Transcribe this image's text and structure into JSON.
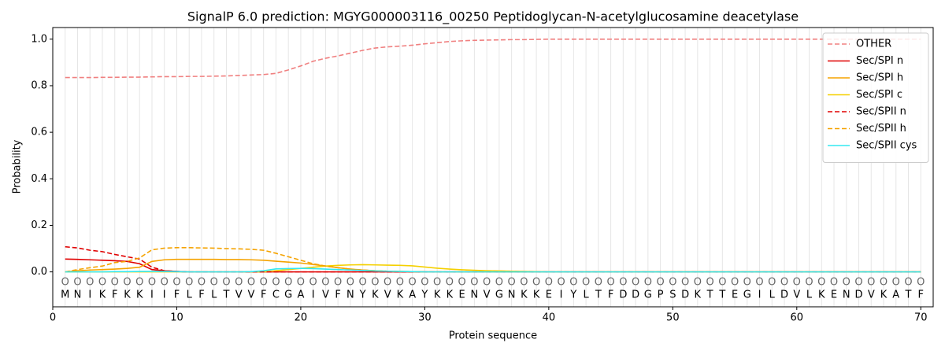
{
  "chart_data": {
    "type": "line",
    "title": "SignalP 6.0 prediction: MGYG000003116_00250 Peptidoglycan-N-acetylglucosamine deacetylase",
    "xlabel": "Protein sequence",
    "ylabel": "Probability",
    "x": [
      1,
      2,
      3,
      4,
      5,
      6,
      7,
      8,
      9,
      10,
      11,
      12,
      13,
      14,
      15,
      16,
      17,
      18,
      19,
      20,
      21,
      22,
      23,
      24,
      25,
      26,
      27,
      28,
      29,
      30,
      31,
      32,
      33,
      34,
      35,
      36,
      37,
      38,
      39,
      40,
      41,
      42,
      43,
      44,
      45,
      46,
      47,
      48,
      49,
      50,
      51,
      52,
      53,
      54,
      55,
      56,
      57,
      58,
      59,
      60,
      61,
      62,
      63,
      64,
      65,
      66,
      67,
      68,
      69,
      70
    ],
    "sequence": [
      "M",
      "N",
      "I",
      "K",
      "F",
      "K",
      "K",
      "I",
      "I",
      "F",
      "L",
      "F",
      "L",
      "T",
      "V",
      "V",
      "F",
      "C",
      "G",
      "A",
      "I",
      "V",
      "F",
      "N",
      "Y",
      "K",
      "V",
      "K",
      "A",
      "Y",
      "K",
      "K",
      "E",
      "N",
      "V",
      "G",
      "N",
      "K",
      "K",
      "E",
      "I",
      "Y",
      "L",
      "T",
      "F",
      "D",
      "D",
      "G",
      "P",
      "S",
      "D",
      "K",
      "T",
      "T",
      "E",
      "G",
      "I",
      "L",
      "D",
      "V",
      "L",
      "K",
      "E",
      "N",
      "D",
      "V",
      "K",
      "A",
      "T",
      "F"
    ],
    "predicted": [
      "O",
      "O",
      "O",
      "O",
      "O",
      "O",
      "O",
      "O",
      "O",
      "O",
      "O",
      "O",
      "O",
      "O",
      "O",
      "O",
      "O",
      "O",
      "O",
      "O",
      "O",
      "O",
      "O",
      "O",
      "O",
      "O",
      "O",
      "O",
      "O",
      "O",
      "O",
      "O",
      "O",
      "O",
      "O",
      "O",
      "O",
      "O",
      "O",
      "O",
      "O",
      "O",
      "O",
      "O",
      "O",
      "O",
      "O",
      "O",
      "O",
      "O",
      "O",
      "O",
      "O",
      "O",
      "O",
      "O",
      "O",
      "O",
      "O",
      "O",
      "O",
      "O",
      "O",
      "O",
      "O",
      "O",
      "O",
      "O",
      "O",
      "O"
    ],
    "xlim": [
      0,
      71
    ],
    "ylim": [
      -0.15,
      1.05
    ],
    "xticks": [
      0,
      10,
      20,
      30,
      40,
      50,
      60,
      70
    ],
    "yticks": [
      {
        "value": 0,
        "label": "0.0"
      },
      {
        "value": 0.2,
        "label": "0.2"
      },
      {
        "value": 0.4,
        "label": "0.4"
      },
      {
        "value": 0.6,
        "label": "0.6"
      },
      {
        "value": 0.8,
        "label": "0.8"
      },
      {
        "value": 1,
        "label": "1.0"
      }
    ],
    "grid": true,
    "legend": "upper right",
    "series": [
      {
        "name": "OTHER",
        "color": "#f08080",
        "linestyle": "dashed",
        "values": [
          0.835,
          0.835,
          0.835,
          0.836,
          0.836,
          0.837,
          0.837,
          0.838,
          0.839,
          0.839,
          0.84,
          0.84,
          0.841,
          0.842,
          0.844,
          0.846,
          0.848,
          0.853,
          0.868,
          0.885,
          0.905,
          0.918,
          0.928,
          0.94,
          0.952,
          0.962,
          0.967,
          0.97,
          0.974,
          0.98,
          0.985,
          0.99,
          0.993,
          0.995,
          0.996,
          0.997,
          0.998,
          0.998,
          0.999,
          1,
          1,
          1,
          1,
          1,
          1,
          1,
          1,
          1,
          1,
          1,
          1,
          1,
          1,
          1,
          1,
          1,
          1,
          1,
          1,
          1,
          1,
          1,
          1,
          1,
          1,
          1,
          1,
          1,
          1,
          1
        ]
      },
      {
        "name": "Sec/SPI n",
        "color": "#e00000",
        "linestyle": "solid",
        "values": [
          0.055,
          0.054,
          0.052,
          0.05,
          0.048,
          0.045,
          0.035,
          0.01,
          0.005,
          0.002,
          0,
          0,
          0,
          0,
          0,
          0,
          0,
          0,
          0,
          0,
          0,
          0,
          0,
          0,
          0,
          0,
          0,
          0,
          0,
          0,
          0,
          0,
          0,
          0,
          0,
          0,
          0,
          0,
          0,
          0,
          0,
          0,
          0,
          0,
          0,
          0,
          0,
          0,
          0,
          0,
          0,
          0,
          0,
          0,
          0,
          0,
          0,
          0,
          0,
          0,
          0,
          0,
          0,
          0,
          0,
          0,
          0,
          0,
          0,
          0
        ]
      },
      {
        "name": "Sec/SPI h",
        "color": "#f5a300",
        "linestyle": "solid",
        "values": [
          0,
          0.005,
          0.008,
          0.01,
          0.012,
          0.015,
          0.02,
          0.045,
          0.052,
          0.054,
          0.054,
          0.054,
          0.054,
          0.053,
          0.053,
          0.052,
          0.05,
          0.046,
          0.042,
          0.038,
          0.032,
          0.025,
          0.018,
          0.012,
          0.008,
          0.005,
          0.003,
          0.002,
          0.001,
          0,
          0,
          0,
          0,
          0,
          0,
          0,
          0,
          0,
          0,
          0,
          0,
          0,
          0,
          0,
          0,
          0,
          0,
          0,
          0,
          0,
          0,
          0,
          0,
          0,
          0,
          0,
          0,
          0,
          0,
          0,
          0,
          0,
          0,
          0,
          0,
          0,
          0,
          0,
          0,
          0
        ]
      },
      {
        "name": "Sec/SPI c",
        "color": "#f5d000",
        "linestyle": "solid",
        "values": [
          0,
          0,
          0,
          0,
          0,
          0,
          0,
          0,
          0,
          0,
          0,
          0,
          0,
          0,
          0,
          0,
          0,
          0.005,
          0.01,
          0.015,
          0.02,
          0.025,
          0.028,
          0.03,
          0.031,
          0.03,
          0.029,
          0.028,
          0.026,
          0.021,
          0.016,
          0.012,
          0.009,
          0.007,
          0.005,
          0.004,
          0.003,
          0.002,
          0.001,
          0,
          0,
          0,
          0,
          0,
          0,
          0,
          0,
          0,
          0,
          0,
          0,
          0,
          0,
          0,
          0,
          0,
          0,
          0,
          0,
          0,
          0,
          0,
          0,
          0,
          0,
          0,
          0,
          0,
          0,
          0
        ]
      },
      {
        "name": "Sec/SPII n",
        "color": "#e00000",
        "linestyle": "dashed",
        "values": [
          0.108,
          0.103,
          0.093,
          0.087,
          0.075,
          0.065,
          0.055,
          0.02,
          0.005,
          0.002,
          0,
          0,
          0,
          0,
          0,
          0,
          0,
          0,
          0,
          0,
          0,
          0,
          0,
          0,
          0,
          0,
          0,
          0,
          0,
          0,
          0,
          0,
          0,
          0,
          0,
          0,
          0,
          0,
          0,
          0,
          0,
          0,
          0,
          0,
          0,
          0,
          0,
          0,
          0,
          0,
          0,
          0,
          0,
          0,
          0,
          0,
          0,
          0,
          0,
          0,
          0,
          0,
          0,
          0,
          0,
          0,
          0,
          0,
          0,
          0
        ]
      },
      {
        "name": "Sec/SPII h",
        "color": "#f5a300",
        "linestyle": "dashed",
        "values": [
          0,
          0.01,
          0.018,
          0.025,
          0.04,
          0.045,
          0.06,
          0.095,
          0.102,
          0.104,
          0.104,
          0.103,
          0.102,
          0.1,
          0.099,
          0.097,
          0.093,
          0.08,
          0.065,
          0.05,
          0.035,
          0.025,
          0.018,
          0.012,
          0.008,
          0.005,
          0.003,
          0.002,
          0.001,
          0,
          0,
          0,
          0,
          0,
          0,
          0,
          0,
          0,
          0,
          0,
          0,
          0,
          0,
          0,
          0,
          0,
          0,
          0,
          0,
          0,
          0,
          0,
          0,
          0,
          0,
          0,
          0,
          0,
          0,
          0,
          0,
          0,
          0,
          0,
          0,
          0,
          0,
          0,
          0,
          0
        ]
      },
      {
        "name": "Sec/SPII cys",
        "color": "#33e8f0",
        "linestyle": "solid",
        "values": [
          0,
          0,
          0,
          0,
          0.001,
          0.001,
          0.002,
          0.002,
          0.002,
          0.001,
          0,
          0,
          0,
          0,
          0,
          0.001,
          0.005,
          0.013,
          0.014,
          0.015,
          0.014,
          0.012,
          0.01,
          0.008,
          0.006,
          0.004,
          0.003,
          0.002,
          0.001,
          0,
          0,
          0,
          0,
          0,
          0,
          0,
          0,
          0,
          0,
          0,
          0,
          0,
          0,
          0,
          0,
          0,
          0,
          0,
          0,
          0,
          0,
          0,
          0,
          0,
          0,
          0,
          0,
          0,
          0,
          0,
          0,
          0,
          0,
          0,
          0,
          0,
          0,
          0,
          0,
          0
        ]
      }
    ]
  }
}
